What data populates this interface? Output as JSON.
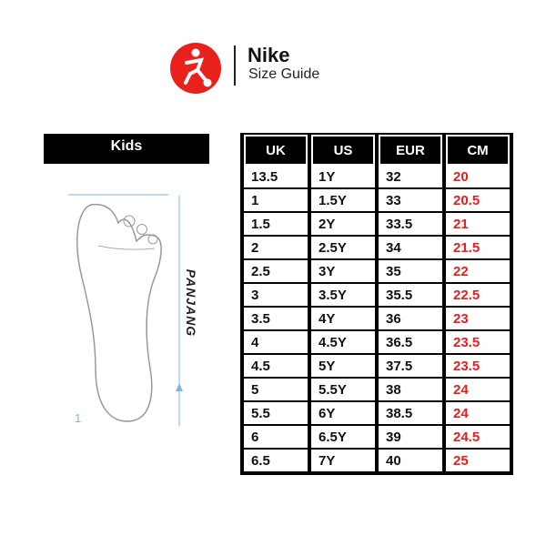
{
  "header": {
    "brand": "Nike",
    "subtitle": "Size Guide",
    "logo_color": "#e8211d"
  },
  "left": {
    "category": "Kids",
    "length_label": "PANJANG",
    "marker": "1"
  },
  "table": {
    "columns": [
      "UK",
      "US",
      "EUR",
      "CM"
    ],
    "rows": [
      [
        "13.5",
        "1Y",
        "32",
        "20"
      ],
      [
        "1",
        "1.5Y",
        "33",
        "20.5"
      ],
      [
        "1.5",
        "2Y",
        "33.5",
        "21"
      ],
      [
        "2",
        "2.5Y",
        "34",
        "21.5"
      ],
      [
        "2.5",
        "3Y",
        "35",
        "22"
      ],
      [
        "3",
        "3.5Y",
        "35.5",
        "22.5"
      ],
      [
        "3.5",
        "4Y",
        "36",
        "23"
      ],
      [
        "4",
        "4.5Y",
        "36.5",
        "23.5"
      ],
      [
        "4.5",
        "5Y",
        "37.5",
        "23.5"
      ],
      [
        "5",
        "5.5Y",
        "38",
        "24"
      ],
      [
        "5.5",
        "6Y",
        "38.5",
        "24"
      ],
      [
        "6",
        "6.5Y",
        "39",
        "24.5"
      ],
      [
        "6.5",
        "7Y",
        "40",
        "25"
      ]
    ],
    "cm_color": "#ee1b1b"
  }
}
